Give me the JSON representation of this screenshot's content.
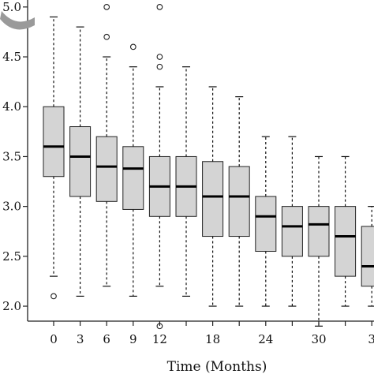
{
  "chart_data": {
    "type": "boxplot",
    "xlabel": "Time (Months)",
    "ylabel": "",
    "ylim": [
      1.85,
      5.07
    ],
    "y_ticks": [
      2.0,
      2.5,
      3.0,
      3.5,
      4.0,
      4.5,
      5.0
    ],
    "y_tick_labels": [
      "2.0",
      "2.5",
      "3.0",
      "3.5",
      "4.0",
      "4.5",
      "5.0"
    ],
    "x_tick_labels": [
      "0",
      "3",
      "6",
      "9",
      "12",
      "18",
      "24",
      "30",
      "3"
    ],
    "box_color": "#d4d4d4",
    "boxes": [
      {
        "x": 0,
        "whisker_low": 2.3,
        "q1": 3.3,
        "median": 3.6,
        "q3": 4.0,
        "whisker_high": 4.9,
        "outliers": [
          2.1
        ]
      },
      {
        "x": 3,
        "whisker_low": 2.1,
        "q1": 3.1,
        "median": 3.5,
        "q3": 3.8,
        "whisker_high": 4.8,
        "outliers": []
      },
      {
        "x": 6,
        "whisker_low": 2.2,
        "q1": 3.05,
        "median": 3.4,
        "q3": 3.7,
        "whisker_high": 4.5,
        "outliers": [
          4.7,
          5.0
        ]
      },
      {
        "x": 9,
        "whisker_low": 2.1,
        "q1": 2.97,
        "median": 3.38,
        "q3": 3.6,
        "whisker_high": 4.4,
        "outliers": [
          4.6
        ]
      },
      {
        "x": 12,
        "whisker_low": 2.2,
        "q1": 2.9,
        "median": 3.2,
        "q3": 3.5,
        "whisker_high": 4.2,
        "outliers": [
          1.8,
          4.4,
          4.5,
          5.0
        ]
      },
      {
        "x": 15,
        "whisker_low": 2.1,
        "q1": 2.9,
        "median": 3.2,
        "q3": 3.5,
        "whisker_high": 4.4,
        "outliers": []
      },
      {
        "x": 18,
        "whisker_low": 2.0,
        "q1": 2.7,
        "median": 3.1,
        "q3": 3.45,
        "whisker_high": 4.2,
        "outliers": []
      },
      {
        "x": 21,
        "whisker_low": 2.0,
        "q1": 2.7,
        "median": 3.1,
        "q3": 3.4,
        "whisker_high": 4.1,
        "outliers": []
      },
      {
        "x": 24,
        "whisker_low": 2.0,
        "q1": 2.55,
        "median": 2.9,
        "q3": 3.1,
        "whisker_high": 3.7,
        "outliers": []
      },
      {
        "x": 27,
        "whisker_low": 2.0,
        "q1": 2.5,
        "median": 2.8,
        "q3": 3.0,
        "whisker_high": 3.7,
        "outliers": []
      },
      {
        "x": 30,
        "whisker_low": 1.8,
        "q1": 2.5,
        "median": 2.82,
        "q3": 3.0,
        "whisker_high": 3.5,
        "outliers": []
      },
      {
        "x": 33,
        "whisker_low": 2.0,
        "q1": 2.3,
        "median": 2.7,
        "q3": 3.0,
        "whisker_high": 3.5,
        "outliers": []
      },
      {
        "x": 36,
        "whisker_low": 2.0,
        "q1": 2.2,
        "median": 2.4,
        "q3": 2.8,
        "whisker_high": 3.0,
        "outliers": []
      }
    ]
  }
}
